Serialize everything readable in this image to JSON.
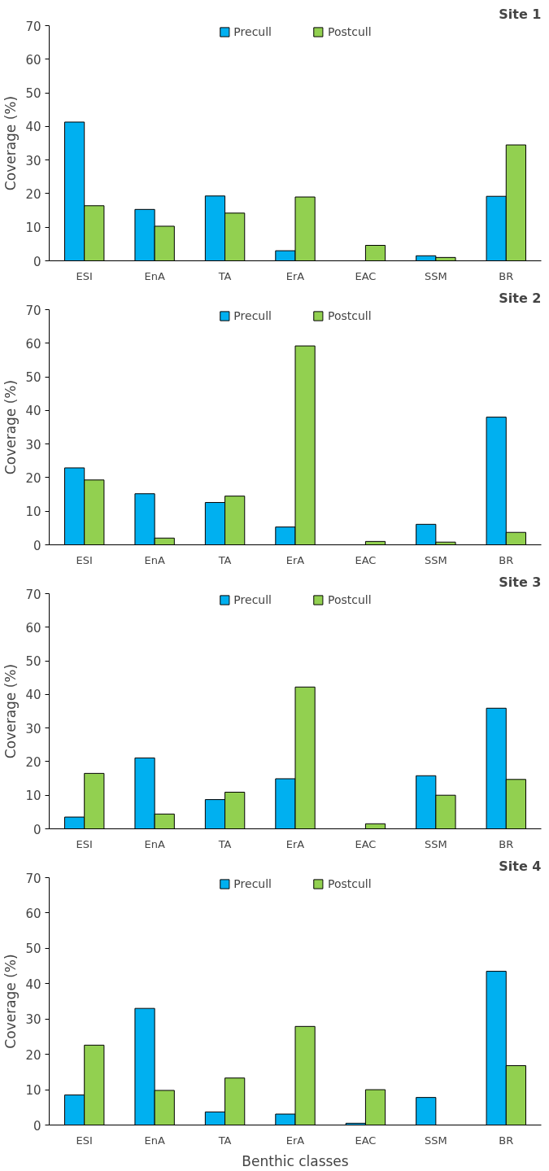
{
  "chart_data": [
    {
      "type": "bar",
      "title": "Site 1",
      "ylabel": "Coverage (%)",
      "categories": [
        "ESI",
        "EnA",
        "TA",
        "ErA",
        "EAC",
        "SSM",
        "BR"
      ],
      "series": [
        {
          "name": "Precull",
          "color": "#00b0f0",
          "values": [
            41.3,
            15.3,
            19.3,
            3.0,
            null,
            1.5,
            19.2
          ]
        },
        {
          "name": "Postcull",
          "color": "#92d050",
          "values": [
            16.4,
            10.3,
            14.2,
            19.0,
            4.6,
            1.0,
            34.5
          ]
        }
      ],
      "ylim": [
        0,
        70
      ],
      "yticks": [
        0,
        10,
        20,
        30,
        40,
        50,
        60,
        70
      ],
      "grid": false,
      "legend": "top"
    },
    {
      "type": "bar",
      "title": "Site 2",
      "ylabel": "Coverage (%)",
      "categories": [
        "ESI",
        "EnA",
        "TA",
        "ErA",
        "EAC",
        "SSM",
        "BR"
      ],
      "series": [
        {
          "name": "Precull",
          "color": "#00b0f0",
          "values": [
            22.9,
            15.2,
            12.6,
            5.3,
            null,
            6.1,
            38.0
          ]
        },
        {
          "name": "Postcull",
          "color": "#92d050",
          "values": [
            19.3,
            2.0,
            14.5,
            59.2,
            1.0,
            0.8,
            3.7
          ]
        }
      ],
      "ylim": [
        0,
        70
      ],
      "yticks": [
        0,
        10,
        20,
        30,
        40,
        50,
        60,
        70
      ],
      "grid": false,
      "legend": "top"
    },
    {
      "type": "bar",
      "title": "Site 3",
      "ylabel": "Coverage (%)",
      "categories": [
        "ESI",
        "EnA",
        "TA",
        "ErA",
        "EAC",
        "SSM",
        "BR"
      ],
      "series": [
        {
          "name": "Precull",
          "color": "#00b0f0",
          "values": [
            3.5,
            21.1,
            8.7,
            14.9,
            null,
            15.8,
            35.9
          ]
        },
        {
          "name": "Postcull",
          "color": "#92d050",
          "values": [
            16.5,
            4.4,
            10.9,
            42.2,
            1.5,
            10.0,
            14.7
          ]
        }
      ],
      "ylim": [
        0,
        70
      ],
      "yticks": [
        0,
        10,
        20,
        30,
        40,
        50,
        60,
        70
      ],
      "grid": false,
      "legend": "top"
    },
    {
      "type": "bar",
      "title": "Site 4",
      "ylabel": "Coverage (%)",
      "xlabel": "Benthic classes",
      "categories": [
        "ESI",
        "EnA",
        "TA",
        "ErA",
        "EAC",
        "SSM",
        "BR"
      ],
      "series": [
        {
          "name": "Precull",
          "color": "#00b0f0",
          "values": [
            8.5,
            33.0,
            3.7,
            3.1,
            0.5,
            7.8,
            43.5
          ]
        },
        {
          "name": "Postcull",
          "color": "#92d050",
          "values": [
            22.6,
            9.8,
            13.3,
            27.9,
            10.0,
            null,
            16.8
          ]
        }
      ],
      "ylim": [
        0,
        70
      ],
      "yticks": [
        0,
        10,
        20,
        30,
        40,
        50,
        60,
        70
      ],
      "grid": false,
      "legend": "top"
    }
  ]
}
